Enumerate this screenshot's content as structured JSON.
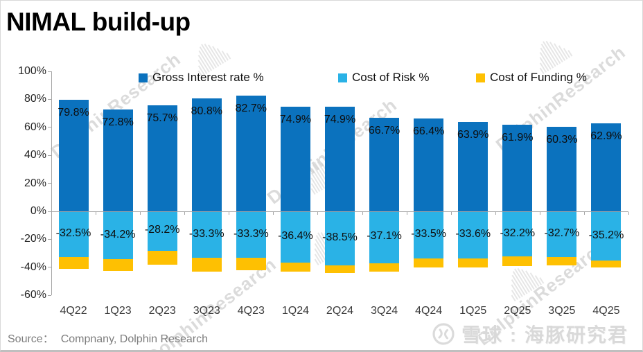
{
  "title": "NIMAL build-up",
  "legend": [
    {
      "label": "Gross Interest rate %",
      "color": "#0b72be"
    },
    {
      "label": "Cost of Risk %",
      "color": "#2ab2e6"
    },
    {
      "label": "Cost of Funding %",
      "color": "#fec002"
    }
  ],
  "source": {
    "label": "Source：",
    "text": "Compnany, Dolphin Research"
  },
  "watermark": {
    "text": "DolphinResearch"
  },
  "brand": {
    "text": "雪球 : 海豚研究君"
  },
  "chart_data": {
    "type": "bar",
    "stacked": true,
    "title": "NIMAL build-up",
    "categories": [
      "4Q22",
      "1Q23",
      "2Q23",
      "3Q23",
      "4Q23",
      "1Q24",
      "2Q24",
      "3Q24",
      "4Q24",
      "1Q25",
      "2Q25",
      "3Q25",
      "4Q25"
    ],
    "series": [
      {
        "name": "Gross Interest rate %",
        "color": "#0b72be",
        "labeled": true,
        "values": [
          79.8,
          72.8,
          75.7,
          80.8,
          82.7,
          74.9,
          74.9,
          66.7,
          66.4,
          63.9,
          61.9,
          60.3,
          62.9
        ]
      },
      {
        "name": "Cost of Risk %",
        "color": "#2ab2e6",
        "labeled": true,
        "values": [
          -32.5,
          -34.2,
          -28.2,
          -33.3,
          -33.3,
          -36.4,
          -38.5,
          -37.1,
          -33.5,
          -33.6,
          -32.2,
          -32.7,
          -35.2
        ]
      },
      {
        "name": "Cost of Funding %",
        "color": "#fec002",
        "labeled": false,
        "values": [
          -8.4,
          -8.2,
          -10.1,
          -9.6,
          -8.6,
          -6.8,
          -5.5,
          -6.0,
          -6.5,
          -6.5,
          -7.0,
          -5.8,
          -4.8
        ]
      }
    ],
    "y_ticks": [
      "100%",
      "80%",
      "60%",
      "40%",
      "20%",
      "0%",
      "-20%",
      "-40%",
      "-60%"
    ],
    "ylim": [
      -60,
      100
    ],
    "grid": false,
    "legend_position": "top",
    "xlabel": "",
    "ylabel": ""
  }
}
